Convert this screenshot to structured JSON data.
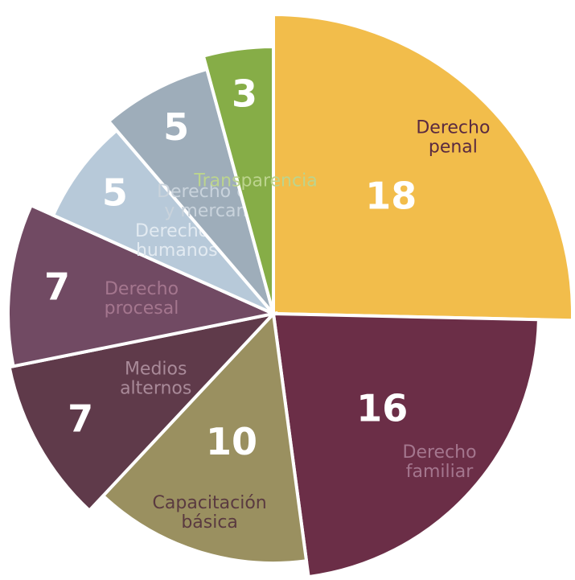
{
  "chart_data": {
    "type": "pie",
    "categories": [
      [
        "Derecho",
        "penal"
      ],
      [
        "Derecho",
        "familiar"
      ],
      [
        "Capacitación",
        "básica"
      ],
      [
        "Medios",
        "alternos"
      ],
      [
        "Derecho",
        "procesal"
      ],
      [
        "Derechos",
        "humanos"
      ],
      [
        "Derecho civil",
        "y mercantil"
      ],
      [
        "Transparencia"
      ]
    ],
    "values": [
      18,
      16,
      10,
      7,
      7,
      5,
      5,
      3
    ],
    "colors": [
      "#f2bd4b",
      "#6b2e47",
      "#9a9060",
      "#5f3a4a",
      "#714a63",
      "#b7c9d9",
      "#9eadba",
      "#86ad47"
    ],
    "label_colors": [
      "#5a2a40",
      "#a4768e",
      "#5a3a40",
      "#a98a99",
      "#a4768e",
      "#e2eaf1",
      "#c9d3dc",
      "#bcd48e"
    ]
  }
}
